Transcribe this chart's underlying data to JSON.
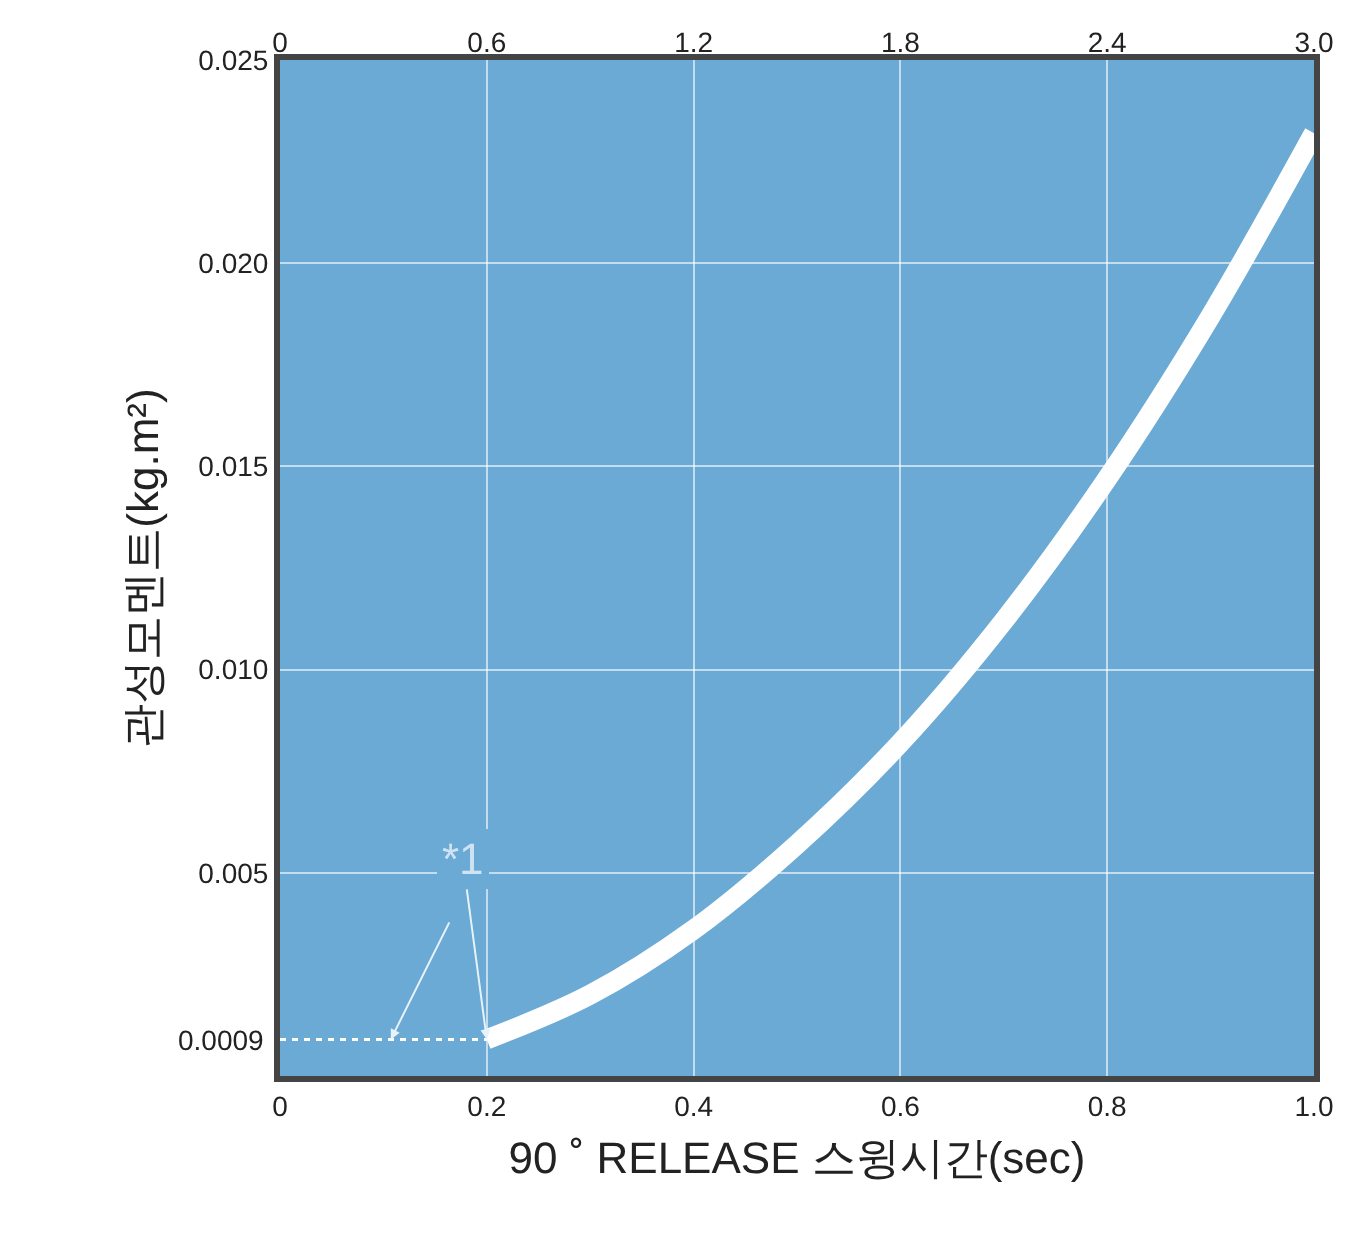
{
  "chart_data": {
    "type": "line",
    "xlabel": "90 ˚ RELEASE 스윙시간(sec)",
    "ylabel": "관성모멘트(kg.m²)",
    "x": [
      0.2,
      0.3,
      0.4,
      0.5,
      0.6,
      0.7,
      0.8,
      0.9,
      1.0
    ],
    "series": [
      {
        "color": "#ffffff",
        "values": [
          0.0009,
          0.002,
          0.0036,
          0.0057,
          0.0082,
          0.0112,
          0.0147,
          0.0187,
          0.0232
        ]
      }
    ],
    "xlim": [
      0,
      1.0
    ],
    "xticks": [
      0,
      {
        "value": 0.2,
        "label": "0.2"
      },
      {
        "value": 0.4,
        "label": "0.4"
      },
      {
        "value": 0.6,
        "label": "0.6"
      },
      {
        "value": 0.8,
        "label": "0.8"
      },
      {
        "value": 1.0,
        "label": "1.0"
      }
    ],
    "x2lim": [
      0,
      3.0
    ],
    "x2ticks": [
      0,
      {
        "value": 0.6,
        "label": "0.6"
      },
      {
        "value": 1.2,
        "label": "1.2"
      },
      {
        "value": 1.8,
        "label": "1.8"
      },
      {
        "value": 2.4,
        "label": "2.4"
      },
      {
        "value": 3.0,
        "label": "3.0"
      }
    ],
    "ylim": [
      0,
      0.025
    ],
    "yticks": [
      {
        "value": 0.005,
        "label": "0.005"
      },
      {
        "value": 0.01,
        "label": "0.010"
      },
      {
        "value": 0.015,
        "label": "0.015"
      },
      {
        "value": 0.02,
        "label": "0.020"
      },
      {
        "value": 0.025,
        "label": "0.025"
      }
    ],
    "ref_lines": [
      {
        "axis": "y",
        "value": 0.0009,
        "label": "0.0009",
        "line_style": "dotted",
        "color": "#ffffff"
      }
    ],
    "annotations": [
      {
        "text": "*1",
        "x": 0.2,
        "y": 0.0009
      }
    ],
    "grid": true,
    "marker": "none",
    "line_style": "solid"
  }
}
